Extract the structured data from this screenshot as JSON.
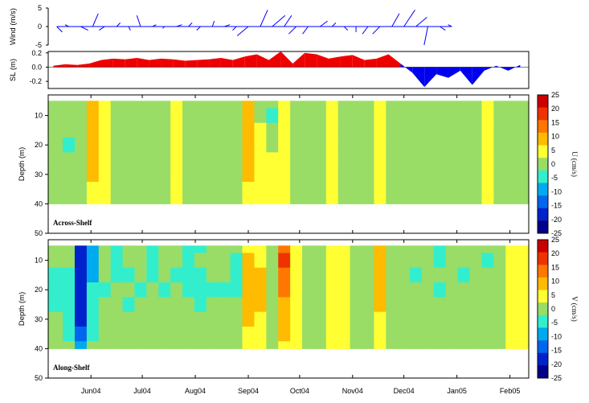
{
  "chart_data": [
    {
      "type": "line",
      "name": "wind-stick-plot",
      "ylabel": "Wind (m/s)",
      "ylim": [
        -5,
        5
      ],
      "yticks": [
        5,
        0,
        -5
      ],
      "color": "#0000ff",
      "x": [
        "2004-05-12",
        "2004-05-19",
        "2004-05-26",
        "2004-06-02",
        "2004-06-09",
        "2004-06-16",
        "2004-06-23",
        "2004-06-30",
        "2004-07-07",
        "2004-07-14",
        "2004-07-21",
        "2004-07-28",
        "2004-08-04",
        "2004-08-11",
        "2004-08-18",
        "2004-08-25",
        "2004-09-01",
        "2004-09-08",
        "2004-09-15",
        "2004-09-22",
        "2004-09-29",
        "2004-10-06",
        "2004-10-13",
        "2004-10-20",
        "2004-10-27",
        "2004-11-03",
        "2004-11-10",
        "2004-11-17",
        "2004-11-24",
        "2004-12-01",
        "2004-12-08",
        "2004-12-15",
        "2004-12-22",
        "2004-12-29"
      ],
      "u": [
        1.5,
        -1,
        2,
        1.5,
        -1.5,
        1,
        0.5,
        -1,
        1,
        -0.5,
        1.5,
        1,
        -1,
        0.5,
        1.5,
        -1,
        -3,
        2,
        3.5,
        2,
        -2,
        -1.5,
        2,
        1,
        1,
        0,
        -1.5,
        -2,
        2,
        3,
        3,
        -1,
        1.5,
        -1
      ],
      "v": [
        -1.5,
        0.5,
        -1,
        3.5,
        -1,
        1,
        -1,
        3,
        0.5,
        -0.5,
        0.5,
        1,
        -1,
        1.5,
        0.5,
        -1,
        -2.5,
        4.5,
        3,
        3,
        -2,
        -2,
        1.5,
        1,
        -1,
        -1.5,
        -2,
        -2,
        3.5,
        4.5,
        2.5,
        -5,
        -1,
        0.5
      ]
    },
    {
      "type": "area",
      "name": "sea-level",
      "ylabel": "SL (m)",
      "ylim": [
        -0.3,
        0.22
      ],
      "yticks": [
        0.2,
        0.0,
        -0.2
      ],
      "colors": {
        "positive": "#ee0000",
        "negative": "#0000ee"
      },
      "x": [
        "2004-05-10",
        "2004-05-17",
        "2004-05-24",
        "2004-05-31",
        "2004-06-07",
        "2004-06-14",
        "2004-06-21",
        "2004-06-28",
        "2004-07-05",
        "2004-07-12",
        "2004-07-19",
        "2004-07-26",
        "2004-08-02",
        "2004-08-09",
        "2004-08-16",
        "2004-08-23",
        "2004-08-30",
        "2004-09-06",
        "2004-09-13",
        "2004-09-20",
        "2004-09-27",
        "2004-10-04",
        "2004-10-11",
        "2004-10-18",
        "2004-10-25",
        "2004-11-01",
        "2004-11-08",
        "2004-11-15",
        "2004-11-22",
        "2004-11-29",
        "2004-12-06",
        "2004-12-13",
        "2004-12-20",
        "2004-12-27",
        "2005-01-03",
        "2005-01-10",
        "2005-01-17",
        "2005-01-24",
        "2005-01-31",
        "2005-02-07"
      ],
      "values": [
        0.02,
        0.04,
        0.03,
        0.05,
        0.1,
        0.12,
        0.11,
        0.13,
        0.1,
        0.12,
        0.11,
        0.09,
        0.1,
        0.11,
        0.13,
        0.1,
        0.15,
        0.18,
        0.1,
        0.22,
        0.05,
        0.2,
        0.18,
        0.12,
        0.15,
        0.17,
        0.1,
        0.12,
        0.18,
        0.05,
        -0.08,
        -0.28,
        -0.1,
        -0.15,
        -0.05,
        -0.25,
        -0.05,
        0.02,
        -0.05,
        0.03
      ]
    },
    {
      "type": "heatmap",
      "name": "across-shelf-velocity",
      "panel_label": "Across-Shelf",
      "ylabel": "Depth (m)",
      "yticks": [
        10,
        20,
        30,
        40,
        50
      ],
      "ylim": [
        50,
        3
      ],
      "data_depth_range": [
        5,
        40
      ],
      "colorbar_title": "U (cm/s)",
      "x": [
        "2004-05-12",
        "2004-05-19",
        "2004-05-26",
        "2004-06-02",
        "2004-06-09",
        "2004-06-16",
        "2004-06-23",
        "2004-06-30",
        "2004-07-07",
        "2004-07-14",
        "2004-07-21",
        "2004-07-28",
        "2004-08-04",
        "2004-08-11",
        "2004-08-18",
        "2004-08-25",
        "2004-09-01",
        "2004-09-08",
        "2004-09-15",
        "2004-09-22",
        "2004-09-29",
        "2004-10-06",
        "2004-10-13",
        "2004-10-20",
        "2004-10-27",
        "2004-11-03",
        "2004-11-10",
        "2004-11-17",
        "2004-11-24",
        "2004-12-01",
        "2004-12-08",
        "2004-12-15",
        "2004-12-22",
        "2004-12-29",
        "2005-01-05",
        "2005-01-12",
        "2005-01-19",
        "2005-01-26",
        "2005-02-02"
      ],
      "depths": [
        5,
        10,
        15,
        20,
        25,
        30,
        35,
        40
      ],
      "values": [
        [
          -2,
          -4,
          -3,
          8,
          4,
          -3,
          -4,
          -2,
          -3,
          -2,
          3,
          -2,
          -3,
          -3,
          -2,
          -4,
          5,
          -2,
          -5,
          4,
          -2,
          -3,
          -1,
          4,
          -1,
          -3,
          -2,
          4,
          -2,
          -4,
          -2,
          -2,
          -3,
          -1,
          -2,
          -4,
          3,
          -3,
          -2
        ],
        [
          -2,
          -4,
          -3,
          6,
          3,
          -3,
          -4,
          -2,
          -3,
          -2,
          2,
          -3,
          -4,
          -2,
          -2,
          -5,
          7,
          -3,
          -6,
          3,
          -3,
          -2,
          -1,
          3,
          -2,
          -2,
          -3,
          3,
          -2,
          -3,
          -3,
          -2,
          -2,
          -2,
          -3,
          -3,
          2,
          -2,
          -1
        ],
        [
          -3,
          -5,
          -3,
          7,
          3,
          -2,
          -3,
          -2,
          -2,
          -3,
          2,
          -2,
          -3,
          -3,
          -3,
          -4,
          8,
          2,
          -3,
          3,
          -4,
          -3,
          -2,
          3,
          -1,
          -3,
          -3,
          3,
          -3,
          -3,
          -2,
          -3,
          -2,
          -2,
          -3,
          -4,
          3,
          -3,
          -2
        ],
        [
          -3,
          -6,
          -4,
          6,
          2,
          -2,
          -3,
          -3,
          -2,
          -2,
          1,
          -3,
          -2,
          -4,
          -3,
          -3,
          6,
          3,
          -2,
          2,
          -3,
          -2,
          -2,
          3,
          -2,
          -2,
          -4,
          2,
          -3,
          -2,
          -3,
          -2,
          -3,
          -3,
          -2,
          -3,
          2,
          -2,
          -2
        ],
        [
          -2,
          -5,
          -3,
          5,
          2,
          -3,
          -2,
          -2,
          -3,
          -2,
          3,
          -2,
          -3,
          -3,
          -2,
          -2,
          7,
          4,
          3,
          2,
          -2,
          -3,
          -1,
          2,
          -3,
          -3,
          -3,
          3,
          -2,
          -3,
          -2,
          -3,
          -2,
          -2,
          -3,
          -4,
          3,
          -3,
          -1
        ],
        [
          -3,
          -4,
          -5,
          5,
          1,
          -2,
          -3,
          -2,
          -2,
          -3,
          2,
          -3,
          -2,
          -2,
          -3,
          -3,
          5,
          3,
          4,
          1,
          -3,
          -2,
          -2,
          3,
          -2,
          -2,
          -2,
          2,
          -3,
          -2,
          -3,
          -2,
          -3,
          -2,
          -2,
          -3,
          2,
          -2,
          -2
        ],
        [
          -2,
          -3,
          -4,
          4,
          2,
          -3,
          -2,
          -3,
          -3,
          -2,
          1,
          -2,
          -3,
          -3,
          -2,
          -2,
          3,
          2,
          2,
          2,
          -2,
          -3,
          -2,
          2,
          -1,
          -3,
          -3,
          3,
          -2,
          -3,
          -2,
          -2,
          -2,
          -3,
          -2,
          -4,
          3,
          -3,
          -2
        ],
        [
          -2,
          -3,
          -3,
          3,
          1,
          -2,
          -2,
          -2,
          -2,
          -2,
          1,
          -2,
          -2,
          -2,
          -2,
          -2,
          2,
          1,
          1,
          1,
          -2,
          -2,
          -1,
          2,
          -2,
          -2,
          -2,
          2,
          -2,
          -2,
          -2,
          -2,
          -2,
          -2,
          -2,
          -3,
          2,
          -2,
          -1
        ]
      ]
    },
    {
      "type": "heatmap",
      "name": "along-shelf-velocity",
      "panel_label": "Along-Shelf",
      "ylabel": "Depth (m)",
      "yticks": [
        10,
        20,
        30,
        40,
        50
      ],
      "ylim": [
        50,
        3
      ],
      "data_depth_range": [
        5,
        40
      ],
      "colorbar_title": "V (cm/s)",
      "x": [
        "2004-05-12",
        "2004-05-19",
        "2004-05-26",
        "2004-06-02",
        "2004-06-09",
        "2004-06-16",
        "2004-06-23",
        "2004-06-30",
        "2004-07-07",
        "2004-07-14",
        "2004-07-21",
        "2004-07-28",
        "2004-08-04",
        "2004-08-11",
        "2004-08-18",
        "2004-08-25",
        "2004-09-01",
        "2004-09-08",
        "2004-09-15",
        "2004-09-22",
        "2004-09-29",
        "2004-10-06",
        "2004-10-13",
        "2004-10-20",
        "2004-10-27",
        "2004-11-03",
        "2004-11-10",
        "2004-11-17",
        "2004-11-24",
        "2004-12-01",
        "2004-12-08",
        "2004-12-15",
        "2004-12-22",
        "2004-12-29",
        "2005-01-05",
        "2005-01-12",
        "2005-01-19",
        "2005-01-26",
        "2005-02-02"
      ],
      "depths": [
        5,
        10,
        15,
        20,
        25,
        30,
        35,
        40
      ],
      "values": [
        [
          -3,
          -4,
          -22,
          -12,
          -3,
          -7,
          -4,
          -3,
          -6,
          -3,
          -4,
          -8,
          -6,
          -4,
          -3,
          -5,
          4,
          3,
          -2,
          12,
          2,
          -3,
          -2,
          4,
          3,
          -2,
          -3,
          8,
          -2,
          -3,
          -4,
          -2,
          -6,
          -3,
          -4,
          -3,
          -5,
          -3,
          2
        ],
        [
          -4,
          -5,
          -24,
          -14,
          -4,
          -8,
          -5,
          -4,
          -7,
          -4,
          -5,
          -9,
          -5,
          -4,
          -4,
          -6,
          6,
          4,
          -3,
          15,
          3,
          -4,
          -3,
          3,
          4,
          -3,
          -4,
          9,
          -3,
          -4,
          -5,
          -3,
          -7,
          -4,
          -5,
          -4,
          -6,
          -4,
          3
        ],
        [
          -6,
          -7,
          -25,
          -12,
          -5,
          -6,
          -6,
          -5,
          -6,
          -5,
          -6,
          -7,
          -6,
          -5,
          -5,
          -7,
          7,
          5,
          -4,
          13,
          4,
          -3,
          -4,
          4,
          3,
          -4,
          -3,
          7,
          -4,
          -3,
          -6,
          -4,
          -5,
          -5,
          -6,
          -3,
          -5,
          -5,
          2
        ],
        [
          -7,
          -8,
          -23,
          -10,
          -6,
          -5,
          -5,
          -6,
          -5,
          -6,
          -5,
          -6,
          -7,
          -6,
          -6,
          -6,
          8,
          6,
          -3,
          10,
          3,
          -4,
          -3,
          3,
          2,
          -3,
          -4,
          6,
          -3,
          -4,
          -5,
          -3,
          -6,
          -4,
          -5,
          -4,
          -4,
          -4,
          3
        ],
        [
          -6,
          -9,
          -24,
          -9,
          -5,
          -4,
          -6,
          -5,
          -4,
          -5,
          -4,
          -5,
          -6,
          -5,
          -5,
          -5,
          7,
          5,
          -2,
          9,
          2,
          -3,
          -2,
          2,
          3,
          -2,
          -3,
          5,
          -2,
          -3,
          -4,
          -2,
          -5,
          -3,
          -4,
          -3,
          -5,
          -3,
          2
        ],
        [
          -5,
          -8,
          -22,
          -8,
          -4,
          -3,
          -5,
          -4,
          -3,
          -4,
          -3,
          -4,
          -5,
          -4,
          -4,
          -4,
          6,
          4,
          -2,
          8,
          2,
          -2,
          -3,
          3,
          2,
          -3,
          -2,
          4,
          -3,
          -2,
          -3,
          -3,
          -4,
          -2,
          -3,
          -2,
          -4,
          -2,
          3
        ],
        [
          -4,
          -6,
          -18,
          -6,
          -3,
          -3,
          -4,
          -3,
          -3,
          -3,
          -3,
          -3,
          -4,
          -3,
          -3,
          -3,
          4,
          3,
          -2,
          6,
          1,
          -2,
          -2,
          2,
          2,
          -2,
          -2,
          3,
          -2,
          -2,
          -3,
          -2,
          -3,
          -2,
          -3,
          -2,
          -3,
          -2,
          2
        ],
        [
          -3,
          -4,
          -12,
          -4,
          -2,
          -2,
          -3,
          -2,
          -2,
          -2,
          -2,
          -2,
          -3,
          -2,
          -2,
          -2,
          2,
          2,
          -1,
          4,
          1,
          -1,
          -1,
          1,
          1,
          -1,
          -1,
          2,
          -1,
          -1,
          -2,
          -1,
          -2,
          -1,
          -2,
          -1,
          -2,
          -1,
          1
        ]
      ]
    }
  ],
  "x_axis": {
    "range": [
      "2004-05-07",
      "2005-02-12"
    ],
    "ticks": [
      {
        "date": "2004-06-01",
        "label": "Jun04"
      },
      {
        "date": "2004-07-01",
        "label": "Jul04"
      },
      {
        "date": "2004-08-01",
        "label": "Aug04"
      },
      {
        "date": "2004-09-01",
        "label": "Sep04"
      },
      {
        "date": "2004-10-01",
        "label": "Oct04"
      },
      {
        "date": "2004-11-01",
        "label": "Nov04"
      },
      {
        "date": "2004-12-01",
        "label": "Dec04"
      },
      {
        "date": "2005-01-01",
        "label": "Jan05"
      },
      {
        "date": "2005-02-01",
        "label": "Feb05"
      }
    ]
  },
  "colorbar": {
    "levels": [
      25,
      20,
      15,
      10,
      5,
      0,
      -5,
      -10,
      -15,
      -20,
      -25
    ],
    "colors": [
      "#cc0000",
      "#ee3300",
      "#ff7700",
      "#ffbb00",
      "#ffff33",
      "#99dd66",
      "#33eecc",
      "#00aaee",
      "#0066ee",
      "#0022cc",
      "#000088"
    ]
  }
}
